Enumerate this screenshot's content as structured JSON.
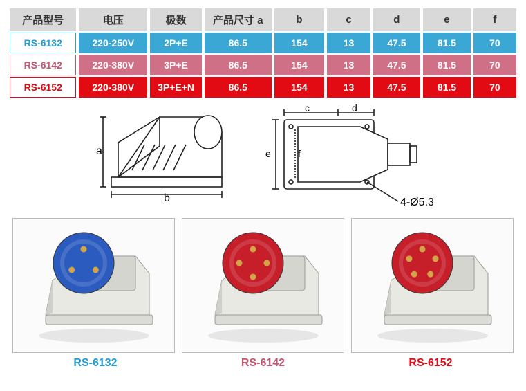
{
  "table": {
    "headers": [
      "产品型号",
      "电压",
      "极数",
      "产品尺寸 a",
      "b",
      "c",
      "d",
      "e",
      "f"
    ],
    "header_bg": "#d9d9d9",
    "header_fg": "#333333",
    "col_widths": [
      "90px",
      "92px",
      "70px",
      "90px",
      "68px",
      "58px",
      "64px",
      "64px",
      "58px"
    ],
    "rows": [
      {
        "label": "RS-6132",
        "label_bg": "#ffffff",
        "label_fg": "#1f9fd6",
        "cell_bg": "#3aa7d4",
        "cell_fg": "#ffffff",
        "cells": [
          "220-250V",
          "2P+E",
          "86.5",
          "154",
          "13",
          "47.5",
          "81.5",
          "70"
        ]
      },
      {
        "label": "RS-6142",
        "label_bg": "#ffffff",
        "label_fg": "#c6556e",
        "cell_bg": "#cf7086",
        "cell_fg": "#ffffff",
        "cells": [
          "220-380V",
          "3P+E",
          "86.5",
          "154",
          "13",
          "47.5",
          "81.5",
          "70"
        ]
      },
      {
        "label": "RS-6152",
        "label_bg": "#ffffff",
        "label_fg": "#e30b13",
        "cell_bg": "#e30b13",
        "cell_fg": "#ffffff",
        "cells": [
          "220-380V",
          "3P+E+N",
          "86.5",
          "154",
          "13",
          "47.5",
          "81.5",
          "70"
        ]
      }
    ]
  },
  "diagram": {
    "stroke": "#222222",
    "label_a": "a",
    "label_b": "b",
    "label_c": "c",
    "label_d": "d",
    "label_e": "e",
    "label_f": "f",
    "hole_note": "4-Ø5.3"
  },
  "products": [
    {
      "name": "RS-6132",
      "caption_color": "#1f9fd6",
      "plug_color": "#2b5bbf",
      "body_color": "#e9e9e4",
      "pin_count": 3
    },
    {
      "name": "RS-6142",
      "caption_color": "#c6556e",
      "plug_color": "#c61f2a",
      "body_color": "#e9e9e4",
      "pin_count": 4
    },
    {
      "name": "RS-6152",
      "caption_color": "#e30b13",
      "plug_color": "#c61f2a",
      "body_color": "#e9e9e4",
      "pin_count": 5
    }
  ]
}
